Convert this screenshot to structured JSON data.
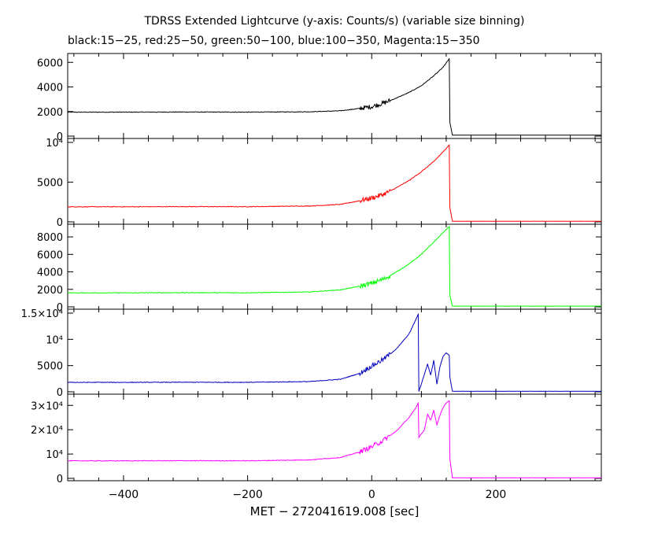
{
  "title": "TDRSS Extended Lightcurve (y-axis: Counts/s) (variable size binning)",
  "subtitle": "black:15−25, red:25−50, green:50−100, blue:100−350, Magenta:15−350",
  "chart_data": {
    "type": "line",
    "xlabel": "MET − 272041619.008 [sec]",
    "xlim": [
      -490,
      370
    ],
    "x_ticks": [
      -400,
      -200,
      0,
      200
    ],
    "x_tick_labels": [
      "−400",
      "−200",
      "0",
      "200"
    ],
    "panels": [
      {
        "name": "black",
        "color": "#000000",
        "ylim": [
          0,
          6400
        ],
        "y_ticks": [
          0,
          2000,
          4000,
          6000
        ],
        "y_tick_labels": [
          "0",
          "2000",
          "4000",
          "6000"
        ],
        "x": [
          -490,
          -400,
          -300,
          -200,
          -100,
          -50,
          -20,
          0,
          20,
          40,
          60,
          80,
          100,
          115,
          125,
          126,
          130,
          370
        ],
        "y": [
          1950,
          1950,
          1960,
          1950,
          1980,
          2060,
          2250,
          2400,
          2700,
          3100,
          3550,
          4100,
          4900,
          5600,
          6300,
          1100,
          80,
          80
        ]
      },
      {
        "name": "red",
        "color": "#ff0000",
        "ylim": [
          0,
          10000
        ],
        "y_ticks": [
          0,
          5000,
          10000
        ],
        "y_tick_labels": [
          "0",
          "5000",
          "10⁴"
        ],
        "x": [
          -490,
          -400,
          -300,
          -200,
          -100,
          -50,
          -20,
          0,
          20,
          40,
          60,
          80,
          100,
          115,
          125,
          126,
          130,
          370
        ],
        "y": [
          1900,
          1900,
          1920,
          1910,
          2000,
          2200,
          2650,
          3000,
          3500,
          4300,
          5200,
          6300,
          7600,
          8800,
          9700,
          1800,
          80,
          80
        ]
      },
      {
        "name": "green",
        "color": "#00ff00",
        "ylim": [
          0,
          9000
        ],
        "y_ticks": [
          0,
          2000,
          4000,
          6000,
          8000
        ],
        "y_tick_labels": [
          "0",
          "2000",
          "4000",
          "6000",
          "8000"
        ],
        "x": [
          -490,
          -400,
          -300,
          -200,
          -100,
          -50,
          -20,
          0,
          20,
          40,
          60,
          80,
          100,
          115,
          125,
          126,
          130,
          370
        ],
        "y": [
          1600,
          1600,
          1620,
          1610,
          1700,
          1950,
          2350,
          2700,
          3200,
          4000,
          4900,
          6000,
          7400,
          8500,
          9200,
          1300,
          80,
          80
        ]
      },
      {
        "name": "blue",
        "color": "#0000bb",
        "ylim": [
          0,
          15000
        ],
        "y_ticks": [
          0,
          5000,
          10000,
          15000
        ],
        "y_tick_labels": [
          "0",
          "5000",
          "10⁴",
          "1.5×10⁴"
        ],
        "x": [
          -490,
          -400,
          -300,
          -200,
          -100,
          -50,
          -20,
          0,
          20,
          40,
          60,
          70,
          75,
          76,
          80,
          90,
          95,
          100,
          105,
          110,
          115,
          120,
          125,
          126,
          130,
          370
        ],
        "y": [
          1800,
          1800,
          1820,
          1810,
          1950,
          2400,
          3500,
          4900,
          6300,
          8200,
          11000,
          13500,
          14800,
          100,
          1500,
          5300,
          3200,
          6000,
          1500,
          4800,
          6800,
          7400,
          7000,
          2800,
          100,
          100
        ]
      },
      {
        "name": "magenta",
        "color": "#ff00ff",
        "ylim": [
          0,
          33000
        ],
        "y_ticks": [
          0,
          10000,
          20000,
          30000
        ],
        "y_tick_labels": [
          "0",
          "10⁴",
          "2×10⁴",
          "3×10⁴"
        ],
        "x": [
          -490,
          -400,
          -300,
          -200,
          -100,
          -50,
          -20,
          0,
          20,
          40,
          60,
          70,
          75,
          76,
          85,
          90,
          95,
          100,
          105,
          110,
          115,
          120,
          125,
          126,
          130,
          370
        ],
        "y": [
          7200,
          7200,
          7250,
          7220,
          7600,
          8600,
          10800,
          13000,
          15800,
          19500,
          25000,
          28500,
          31000,
          17000,
          20000,
          26500,
          24000,
          28000,
          22000,
          26000,
          29000,
          31000,
          32000,
          8000,
          200,
          200
        ]
      }
    ]
  }
}
